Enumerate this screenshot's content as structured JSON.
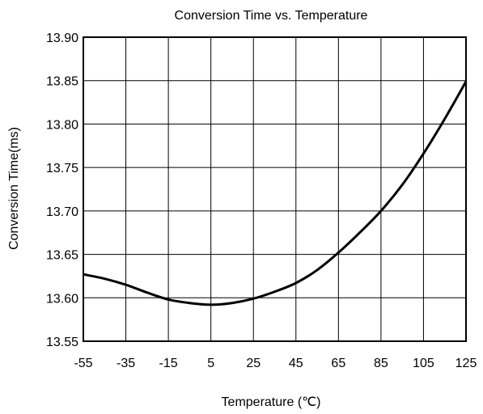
{
  "chart_data": {
    "type": "line",
    "title": "Conversion Time vs. Temperature",
    "xlabel": "Temperature (℃)",
    "ylabel": "Conversion Time(ms)",
    "xlim": [
      -55,
      125
    ],
    "ylim": [
      13.55,
      13.9
    ],
    "x_ticks": [
      "-55",
      "-35",
      "-15",
      "5",
      "25",
      "45",
      "65",
      "85",
      "105",
      "125"
    ],
    "y_ticks": [
      "13.55",
      "13.60",
      "13.65",
      "13.70",
      "13.75",
      "13.80",
      "13.85",
      "13.90"
    ],
    "grid": true,
    "series": [
      {
        "color": "#000000",
        "x": [
          -55,
          -45,
          -35,
          -25,
          -15,
          -5,
          5,
          15,
          25,
          35,
          45,
          55,
          65,
          75,
          85,
          95,
          105,
          115,
          125
        ],
        "y": [
          13.627,
          13.622,
          13.615,
          13.606,
          13.598,
          13.594,
          13.592,
          13.594,
          13.599,
          13.607,
          13.617,
          13.632,
          13.652,
          13.675,
          13.7,
          13.73,
          13.766,
          13.806,
          13.849
        ]
      }
    ]
  }
}
